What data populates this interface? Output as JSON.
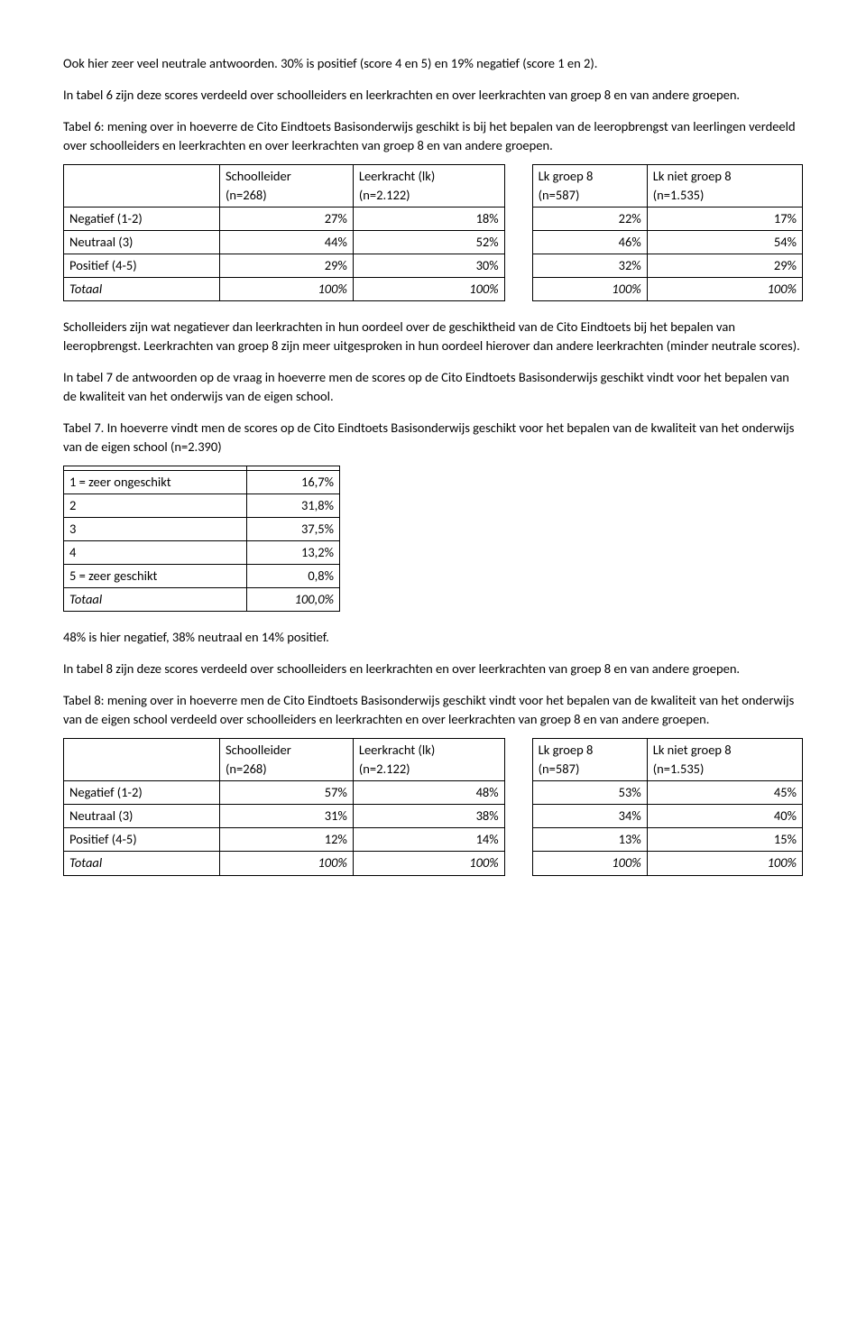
{
  "para1": "Ook hier zeer veel neutrale antwoorden. 30% is positief (score 4 en 5) en 19% negatief (score 1 en 2).",
  "para2": "In tabel 6 zijn deze scores verdeeld over schoolleiders en leerkrachten en over leerkrachten van groep 8 en van andere groepen.",
  "caption6": "Tabel 6: mening over in hoeverre de Cito Eindtoets Basisonderwijs geschikt is bij het bepalen van de leeropbrengst van leerlingen verdeeld over schoolleiders en leerkrachten en over leerkrachten van groep 8 en van andere groepen.",
  "headers": {
    "h1a": "Schoolleider",
    "h1b": "(n=268)",
    "h2a": "Leerkracht (lk)",
    "h2b": "(n=2.122)",
    "h3a": "Lk groep 8",
    "h3b": "(n=587)",
    "h4a": "Lk niet groep 8",
    "h4b": "(n=1.535)"
  },
  "rowlabels": {
    "neg": "Negatief (1-2)",
    "neu": "Neutraal (3)",
    "pos": "Positief (4-5)",
    "tot": "Totaal"
  },
  "t6": {
    "neg": [
      "27%",
      "18%",
      "22%",
      "17%"
    ],
    "neu": [
      "44%",
      "52%",
      "46%",
      "54%"
    ],
    "pos": [
      "29%",
      "30%",
      "32%",
      "29%"
    ],
    "tot": [
      "100%",
      "100%",
      "100%",
      "100%"
    ]
  },
  "para3": "Scholleiders zijn wat negatiever dan leerkrachten in hun oordeel over de geschiktheid van de Cito Eindtoets bij het bepalen van leeropbrengst. Leerkrachten van groep 8 zijn meer uitgesproken in hun oordeel hierover dan andere leerkrachten (minder neutrale scores).",
  "para4": "In tabel 7 de antwoorden op de vraag in hoeverre men de scores op de Cito Eindtoets Basisonderwijs geschikt vindt voor het bepalen van de kwaliteit van het onderwijs van de eigen school.",
  "caption7": "Tabel 7. In hoeverre vindt men de scores op de Cito Eindtoets Basisonderwijs geschikt voor het bepalen van de kwaliteit van het onderwijs van de eigen school (n=2.390)",
  "t7": {
    "r1l": "1 = zeer ongeschikt",
    "r1v": "16,7%",
    "r2l": "2",
    "r2v": "31,8%",
    "r3l": "3",
    "r3v": "37,5%",
    "r4l": "4",
    "r4v": "13,2%",
    "r5l": "5 = zeer geschikt",
    "r5v": "0,8%",
    "r6l": "Totaal",
    "r6v": "100,0%"
  },
  "para5": "48% is hier negatief, 38% neutraal en 14% positief.",
  "para6": "In tabel 8 zijn deze scores verdeeld over schoolleiders en leerkrachten en over leerkrachten van groep 8 en van andere groepen.",
  "caption8": "Tabel 8: mening over in hoeverre men de Cito Eindtoets Basisonderwijs geschikt vindt voor het bepalen van de kwaliteit van het onderwijs van de eigen school verdeeld over schoolleiders en leerkrachten en over leerkrachten van groep 8 en van andere groepen.",
  "t8": {
    "neg": [
      "57%",
      "48%",
      "53%",
      "45%"
    ],
    "neu": [
      "31%",
      "38%",
      "34%",
      "40%"
    ],
    "pos": [
      "12%",
      "14%",
      "13%",
      "15%"
    ],
    "tot": [
      "100%",
      "100%",
      "100%",
      "100%"
    ]
  }
}
